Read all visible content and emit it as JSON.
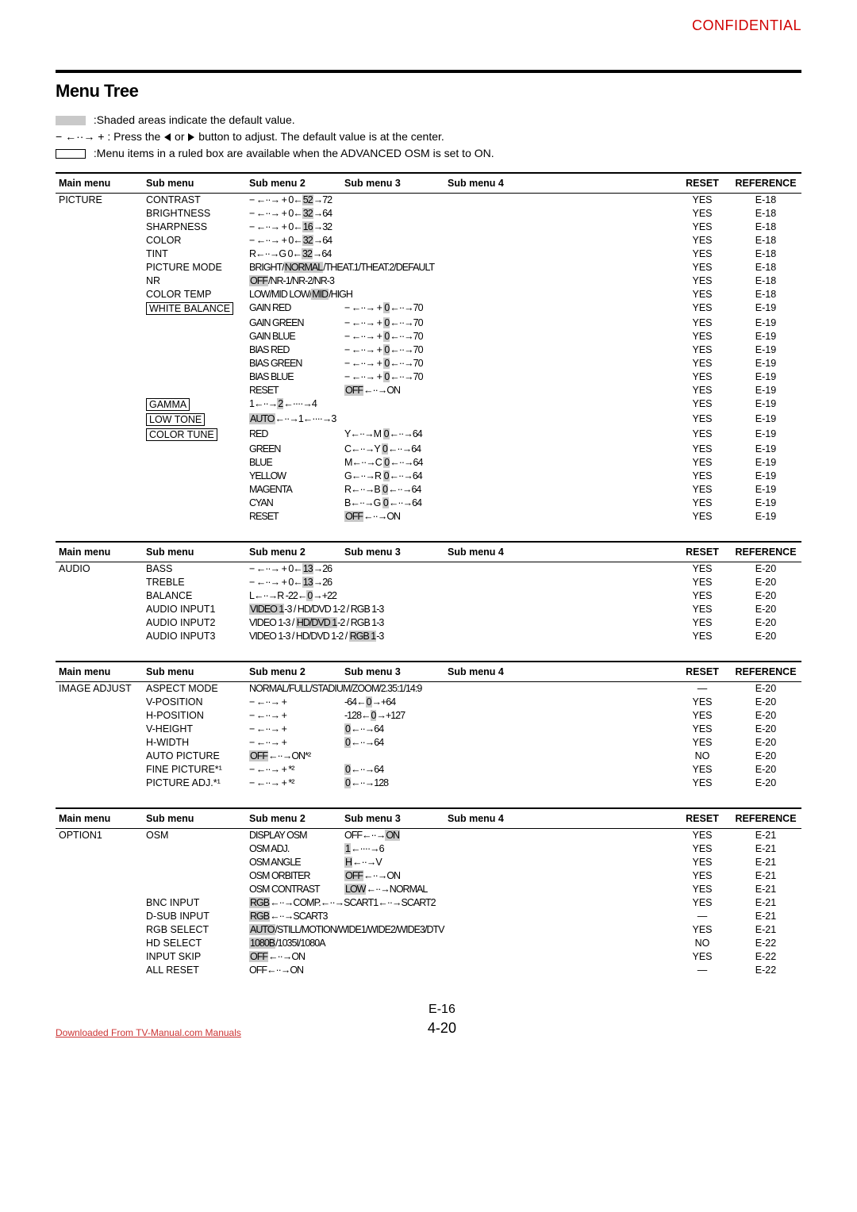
{
  "confidential": "CONFIDENTIAL",
  "title": "Menu Tree",
  "legend": {
    "shaded": ":Shaded areas indicate the default value.",
    "press_pre": "− ←··→ + : Press the ",
    "press_post": " button to adjust. The default value is at the center.",
    "press_or": " or ",
    "boxed": ":Menu items in a ruled box are available when the ADVANCED OSM is set to ON."
  },
  "headers": {
    "main": "Main menu",
    "sub": "Sub menu",
    "s2": "Sub menu 2",
    "s3": "Sub menu 3",
    "s4": "Sub menu 4",
    "reset": "RESET",
    "ref": "REFERENCE"
  },
  "sections": [
    {
      "rows": [
        {
          "main": "PICTURE",
          "sub": "CONTRAST",
          "s2": "− ←··→ +  0←<hl>52</hl>→72",
          "reset": "YES",
          "ref": "E-18"
        },
        {
          "sub": "BRIGHTNESS",
          "s2": "− ←··→ +  0←<hl>32</hl>→64",
          "reset": "YES",
          "ref": "E-18"
        },
        {
          "sub": "SHARPNESS",
          "s2": "− ←··→ +  0←<hl>16</hl>→32",
          "reset": "YES",
          "ref": "E-18"
        },
        {
          "sub": "COLOR",
          "s2": "− ←··→ +  0←<hl>32</hl>→64",
          "reset": "YES",
          "ref": "E-18"
        },
        {
          "sub": "TINT",
          "s2": "R←··→G   0←<hl>32</hl>→64",
          "reset": "YES",
          "ref": "E-18"
        },
        {
          "sub": "PICTURE MODE",
          "s2": "BRIGHT/<hl>NORMAL</hl>/THEAT.1/THEAT.2/DEFAULT",
          "reset": "YES",
          "ref": "E-18"
        },
        {
          "sub": "NR",
          "s2": "<hl>OFF</hl>/NR-1/NR-2/NR-3",
          "reset": "YES",
          "ref": "E-18"
        },
        {
          "sub": "COLOR TEMP",
          "s2": "LOW/MID LOW/<hl>MID</hl>/HIGH",
          "reset": "YES",
          "ref": "E-18"
        },
        {
          "sub_box": "WHITE BALANCE",
          "s2": "GAIN RED",
          "s3": "− ←··→ +  <hl>0</hl>←··→70",
          "reset": "YES",
          "ref": "E-19"
        },
        {
          "s2": "GAIN GREEN",
          "s3": "− ←··→ +  <hl>0</hl>←··→70",
          "reset": "YES",
          "ref": "E-19"
        },
        {
          "s2": "GAIN BLUE",
          "s3": "− ←··→ +  <hl>0</hl>←··→70",
          "reset": "YES",
          "ref": "E-19"
        },
        {
          "s2": "BIAS RED",
          "s3": "− ←··→ +  <hl>0</hl>←··→70",
          "reset": "YES",
          "ref": "E-19"
        },
        {
          "s2": "BIAS GREEN",
          "s3": "− ←··→ +  <hl>0</hl>←··→70",
          "reset": "YES",
          "ref": "E-19"
        },
        {
          "s2": "BIAS BLUE",
          "s3": "− ←··→ +  <hl>0</hl>←··→70",
          "reset": "YES",
          "ref": "E-19"
        },
        {
          "s2": "RESET",
          "s3": "<hl>OFF</hl>←··→ON",
          "reset": "YES",
          "ref": "E-19"
        },
        {
          "sub_box": "GAMMA",
          "s2": "1←··→<hl>2</hl>←····→4",
          "reset": "YES",
          "ref": "E-19"
        },
        {
          "sub_box": "LOW TONE",
          "s2": "<hl>AUTO</hl>←··→1←····→3",
          "reset": "YES",
          "ref": "E-19"
        },
        {
          "sub_box": "COLOR TUNE",
          "s2": "RED",
          "s3": "Y←··→M   <hl>0</hl>←··→64",
          "reset": "YES",
          "ref": "E-19"
        },
        {
          "s2": "GREEN",
          "s3": "C←··→Y   <hl>0</hl>←··→64",
          "reset": "YES",
          "ref": "E-19"
        },
        {
          "s2": "BLUE",
          "s3": "M←··→C   <hl>0</hl>←··→64",
          "reset": "YES",
          "ref": "E-19"
        },
        {
          "s2": "YELLOW",
          "s3": "G←··→R   <hl>0</hl>←··→64",
          "reset": "YES",
          "ref": "E-19"
        },
        {
          "s2": "MAGENTA",
          "s3": "R←··→B   <hl>0</hl>←··→64",
          "reset": "YES",
          "ref": "E-19"
        },
        {
          "s2": "CYAN",
          "s3": "B←··→G   <hl>0</hl>←··→64",
          "reset": "YES",
          "ref": "E-19"
        },
        {
          "s2": "RESET",
          "s3": "<hl>OFF</hl>←··→ON",
          "reset": "YES",
          "ref": "E-19"
        }
      ]
    },
    {
      "rows": [
        {
          "main": "AUDIO",
          "sub": "BASS",
          "s2": "− ←··→ +  0←<hl>13</hl>→26",
          "reset": "YES",
          "ref": "E-20"
        },
        {
          "sub": "TREBLE",
          "s2": "− ←··→ +  0←<hl>13</hl>→26",
          "reset": "YES",
          "ref": "E-20"
        },
        {
          "sub": "BALANCE",
          "s2": "L←··→R   -22←<hl>0</hl>→+22",
          "reset": "YES",
          "ref": "E-20"
        },
        {
          "sub": "AUDIO INPUT1",
          "s2": "<hl>VIDEO 1</hl>-3 / HD/DVD 1-2 / RGB 1-3",
          "reset": "YES",
          "ref": "E-20"
        },
        {
          "sub": "AUDIO INPUT2",
          "s2": "VIDEO 1-3 / <hl>HD/DVD 1</hl>-2 / RGB 1-3",
          "reset": "YES",
          "ref": "E-20"
        },
        {
          "sub": "AUDIO INPUT3",
          "s2": "VIDEO 1-3 / HD/DVD 1-2 / <hl>RGB 1</hl>-3",
          "reset": "YES",
          "ref": "E-20"
        }
      ]
    },
    {
      "rows": [
        {
          "main": "IMAGE ADJUST",
          "sub": "ASPECT MODE",
          "s2": "NORMAL/FULL/STADIUM/ZOOM/2.35:1/14:9",
          "reset": "—",
          "ref": "E-20"
        },
        {
          "sub": "V-POSITION",
          "s2": "− ←··→ +",
          "s3": "-64←<hl>0</hl>→+64",
          "reset": "YES",
          "ref": "E-20"
        },
        {
          "sub": "H-POSITION",
          "s2": "− ←··→ +",
          "s3": "-128←<hl>0</hl>→+127",
          "reset": "YES",
          "ref": "E-20"
        },
        {
          "sub": "V-HEIGHT",
          "s2": "− ←··→ +",
          "s3": "<hl>0</hl>←··→64",
          "reset": "YES",
          "ref": "E-20"
        },
        {
          "sub": "H-WIDTH",
          "s2": "− ←··→ +",
          "s3": "<hl>0</hl>←··→64",
          "reset": "YES",
          "ref": "E-20"
        },
        {
          "sub": "AUTO PICTURE",
          "s2": "<hl>OFF</hl>←··→ON*²",
          "reset": "NO",
          "ref": "E-20"
        },
        {
          "sub": "FINE PICTURE*¹",
          "s2": "− ←··→ + *²",
          "s3": "<hl>0</hl>←··→64",
          "reset": "YES",
          "ref": "E-20"
        },
        {
          "sub": "PICTURE ADJ.*¹",
          "s2": "− ←··→ + *²",
          "s3": "<hl>0</hl>←··→128",
          "reset": "YES",
          "ref": "E-20"
        }
      ]
    },
    {
      "rows": [
        {
          "main": "OPTION1",
          "sub": "OSM",
          "s2": "DISPLAY OSM",
          "s3": "OFF←··→<hl>ON</hl>",
          "reset": "YES",
          "ref": "E-21"
        },
        {
          "s2": "OSM ADJ.",
          "s3": "<hl>1</hl>←····→6",
          "reset": "YES",
          "ref": "E-21"
        },
        {
          "s2": "OSM ANGLE",
          "s3": "<hl>H</hl>←··→V",
          "reset": "YES",
          "ref": "E-21"
        },
        {
          "s2": "OSM ORBITER",
          "s3": "<hl>OFF</hl>←··→ON",
          "reset": "YES",
          "ref": "E-21"
        },
        {
          "s2": "OSM CONTRAST",
          "s3": "<hl>LOW</hl>←··→NORMAL",
          "reset": "YES",
          "ref": "E-21"
        },
        {
          "sub": "BNC INPUT",
          "s2": "<hl>RGB</hl>←··→COMP.←··→SCART1←··→SCART2",
          "reset": "YES",
          "ref": "E-21"
        },
        {
          "sub": "D-SUB INPUT",
          "s2": "<hl>RGB</hl>←··→SCART3",
          "reset": "—",
          "ref": "E-21"
        },
        {
          "sub": "RGB SELECT",
          "s2": "<hl>AUTO</hl>/STILL/MOTION/WIDE1/WIDE2/WIDE3/DTV",
          "reset": "YES",
          "ref": "E-21"
        },
        {
          "sub": "HD SELECT",
          "s2": "<hl>1080B</hl>/1035I/1080A",
          "reset": "NO",
          "ref": "E-22"
        },
        {
          "sub": "INPUT SKIP",
          "s2": "<hl>OFF</hl>←··→ON",
          "reset": "YES",
          "ref": "E-22"
        },
        {
          "sub": "ALL RESET",
          "s2": "OFF←··→ON",
          "reset": "—",
          "ref": "E-22"
        }
      ]
    }
  ],
  "footer": {
    "link": "Downloaded From TV-Manual.com Manuals",
    "page1": "E-16",
    "page2": "4-20"
  }
}
